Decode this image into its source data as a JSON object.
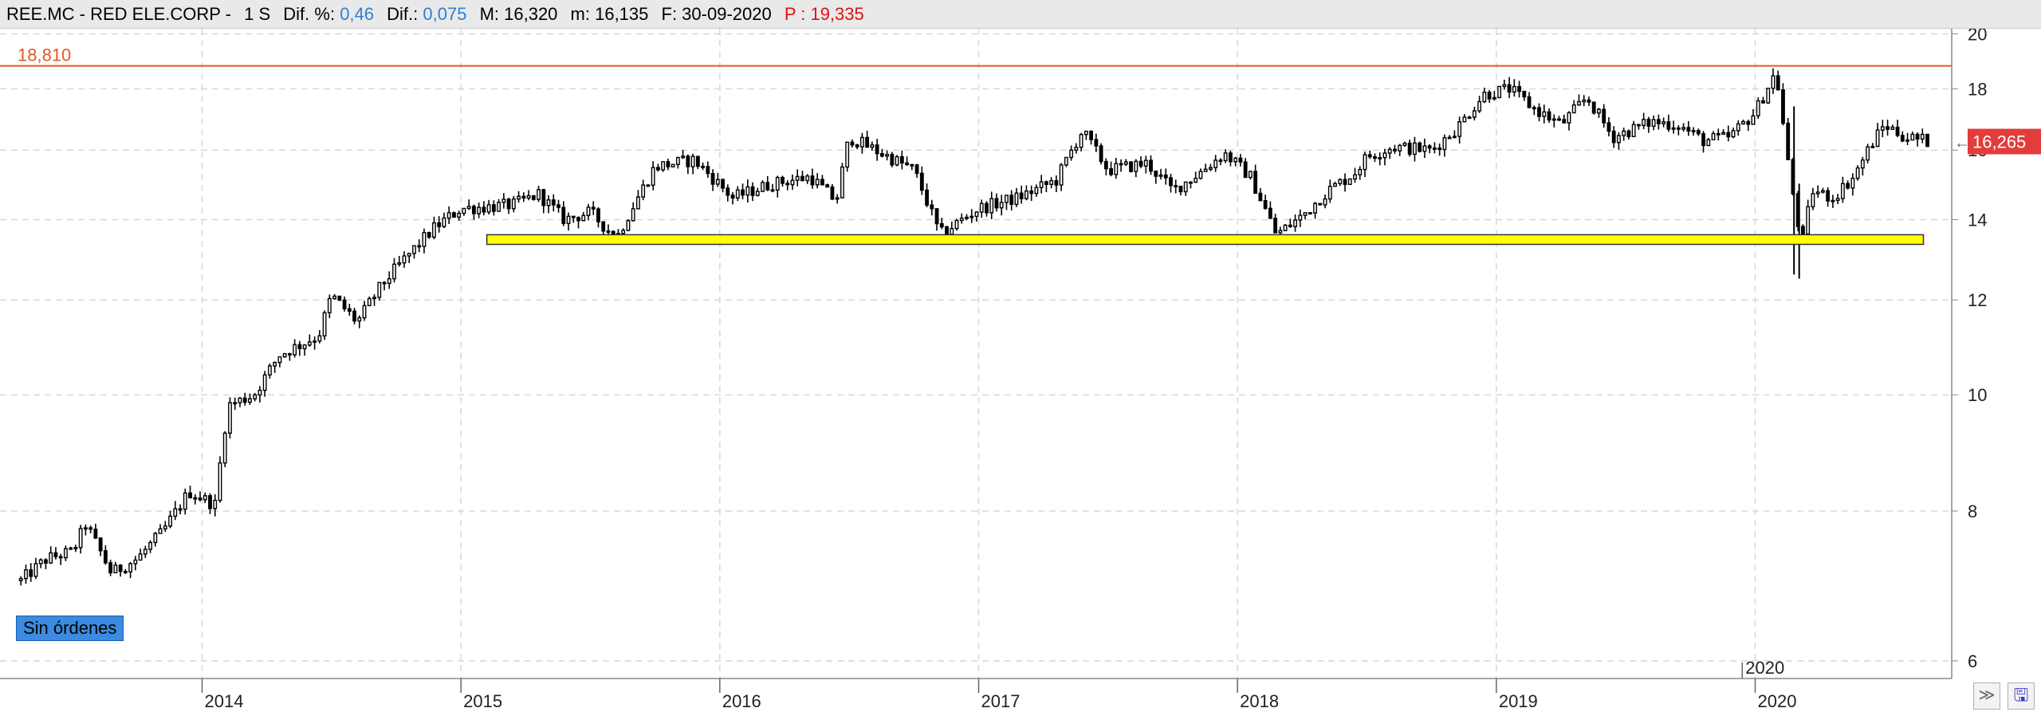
{
  "header": {
    "ticker": "REE.MC - RED ELE.CORP -",
    "period": "1 S",
    "dif_pct_label": "Dif. %:",
    "dif_pct_value": "0,46",
    "dif_label": "Dif.:",
    "dif_value": "0,075",
    "max_label": "M: 16,320",
    "min_label": "m: 16,135",
    "date_label": "F: 30-09-2020",
    "p_label": "P : 19,335"
  },
  "badges": {
    "sin_ordenes": "Sin órdenes",
    "last_price": "16,265",
    "hline_label": "18,810"
  },
  "colors": {
    "candle": "#000000",
    "hline": "#e25822",
    "support_band_fill": "#ffff00",
    "support_band_stroke": "#333333",
    "grid": "#d8d8d8",
    "last_price_badge": "#e23c3c",
    "header_blue": "#2f7fd6",
    "header_red": "#e01010"
  },
  "icons": {
    "collapse": "double-chevron-icon",
    "save": "floppy-disk-icon"
  },
  "chart_data": {
    "type": "candlestick",
    "period": "weekly",
    "y_scale": "log",
    "ylim": [
      5.8,
      20.2
    ],
    "xlim": [
      2013.25,
      2020.75
    ],
    "y_ticks": [
      "6",
      "8",
      "10",
      "12",
      "14",
      "16",
      "18",
      "20"
    ],
    "x_ticks": [
      "2014",
      "2015",
      "2016",
      "2017",
      "2018",
      "2019",
      "2020"
    ],
    "x_ticks_secondary": [
      "2020"
    ],
    "last_price": 16.265,
    "horizontal_line": 18.81,
    "support_band": {
      "from": 2015.1,
      "to": 2020.65,
      "low": 13.35,
      "high": 13.6
    },
    "close_anchors": [
      [
        2013.3,
        7.0
      ],
      [
        2013.4,
        7.3
      ],
      [
        2013.5,
        7.4
      ],
      [
        2013.55,
        7.8
      ],
      [
        2013.65,
        7.1
      ],
      [
        2013.75,
        7.3
      ],
      [
        2013.85,
        7.7
      ],
      [
        2013.95,
        8.3
      ],
      [
        2014.05,
        8.1
      ],
      [
        2014.1,
        9.8
      ],
      [
        2014.2,
        10.0
      ],
      [
        2014.3,
        10.8
      ],
      [
        2014.45,
        11.2
      ],
      [
        2014.5,
        12.1
      ],
      [
        2014.6,
        11.5
      ],
      [
        2014.7,
        12.4
      ],
      [
        2014.8,
        13.1
      ],
      [
        2014.9,
        13.8
      ],
      [
        2015.0,
        14.3
      ],
      [
        2015.2,
        14.4
      ],
      [
        2015.3,
        14.7
      ],
      [
        2015.4,
        14.0
      ],
      [
        2015.5,
        14.2
      ],
      [
        2015.6,
        13.5
      ],
      [
        2015.75,
        15.5
      ],
      [
        2015.9,
        15.7
      ],
      [
        2016.05,
        14.6
      ],
      [
        2016.2,
        15.0
      ],
      [
        2016.35,
        15.2
      ],
      [
        2016.45,
        14.5
      ],
      [
        2016.5,
        16.4
      ],
      [
        2016.6,
        16.0
      ],
      [
        2016.75,
        15.4
      ],
      [
        2016.85,
        13.6
      ],
      [
        2017.0,
        14.3
      ],
      [
        2017.15,
        14.6
      ],
      [
        2017.3,
        15.1
      ],
      [
        2017.4,
        16.6
      ],
      [
        2017.5,
        15.4
      ],
      [
        2017.65,
        15.6
      ],
      [
        2017.75,
        14.8
      ],
      [
        2017.85,
        15.3
      ],
      [
        2017.95,
        15.9
      ],
      [
        2018.05,
        15.2
      ],
      [
        2018.15,
        13.6
      ],
      [
        2018.25,
        14.1
      ],
      [
        2018.35,
        14.8
      ],
      [
        2018.45,
        15.3
      ],
      [
        2018.5,
        15.8
      ],
      [
        2018.6,
        16.1
      ],
      [
        2018.75,
        16.0
      ],
      [
        2018.85,
        16.7
      ],
      [
        2018.95,
        17.8
      ],
      [
        2019.05,
        18.0
      ],
      [
        2019.15,
        17.3
      ],
      [
        2019.25,
        16.8
      ],
      [
        2019.35,
        17.7
      ],
      [
        2019.45,
        16.4
      ],
      [
        2019.6,
        16.9
      ],
      [
        2019.7,
        16.8
      ],
      [
        2019.8,
        16.3
      ],
      [
        2019.9,
        16.4
      ],
      [
        2020.0,
        17.2
      ],
      [
        2020.08,
        18.6
      ],
      [
        2020.13,
        15.4
      ],
      [
        2020.18,
        13.3
      ],
      [
        2020.22,
        14.8
      ],
      [
        2020.3,
        14.6
      ],
      [
        2020.38,
        15.2
      ],
      [
        2020.45,
        16.2
      ],
      [
        2020.5,
        16.8
      ],
      [
        2020.58,
        16.4
      ],
      [
        2020.68,
        16.26
      ]
    ]
  }
}
